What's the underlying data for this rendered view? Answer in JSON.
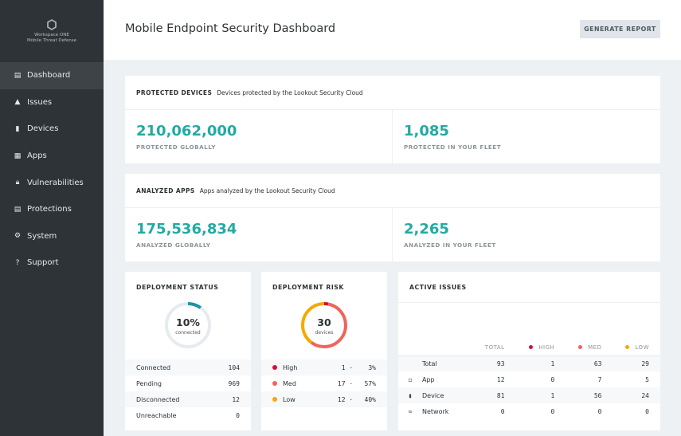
{
  "sidebar": {
    "logo_line1": "Workspace ONE",
    "logo_line2": "Mobile Threat Defense",
    "items": [
      {
        "label": "Dashboard",
        "icon": "dashboard-icon"
      },
      {
        "label": "Issues",
        "icon": "warning-icon"
      },
      {
        "label": "Devices",
        "icon": "device-icon"
      },
      {
        "label": "Apps",
        "icon": "apps-icon"
      },
      {
        "label": "Vulnerabilities",
        "icon": "lock-icon"
      },
      {
        "label": "Protections",
        "icon": "protections-icon"
      },
      {
        "label": "System",
        "icon": "gear-icon"
      },
      {
        "label": "Support",
        "icon": "help-icon"
      }
    ]
  },
  "header": {
    "title": "Mobile Endpoint Security Dashboard",
    "generate_report": "GENERATE REPORT"
  },
  "protected": {
    "title": "PROTECTED DEVICES",
    "desc": "Devices protected by the Lookout Security Cloud",
    "global_value": "210,062,000",
    "global_label": "PROTECTED GLOBALLY",
    "fleet_value": "1,085",
    "fleet_label": "PROTECTED IN YOUR FLEET"
  },
  "analyzed": {
    "title": "ANALYZED APPS",
    "desc": "Apps analyzed by the Lookout Security Cloud",
    "global_value": "175,536,834",
    "global_label": "ANALYZED GLOBALLY",
    "fleet_value": "2,265",
    "fleet_label": "ANALYZED IN YOUR FLEET"
  },
  "deployment_status": {
    "title": "DEPLOYMENT STATUS",
    "percent": "10%",
    "percent_value": 10,
    "center_label": "connected",
    "rows": [
      {
        "label": "Connected",
        "value": "104"
      },
      {
        "label": "Pending",
        "value": "969"
      },
      {
        "label": "Disconnected",
        "value": "12"
      },
      {
        "label": "Unreachable",
        "value": "0"
      }
    ]
  },
  "deployment_risk": {
    "title": "DEPLOYMENT RISK",
    "total": "30",
    "center_label": "devices",
    "rows": [
      {
        "label": "High",
        "count": "1",
        "percent": "3%",
        "value": 3,
        "color": "#d0103a"
      },
      {
        "label": "Med",
        "count": "17",
        "percent": "57%",
        "value": 57,
        "color": "#f0645a"
      },
      {
        "label": "Low",
        "count": "12",
        "percent": "40%",
        "value": 40,
        "color": "#f7a800"
      }
    ]
  },
  "active_issues": {
    "title": "ACTIVE ISSUES",
    "columns": [
      "TOTAL",
      "HIGH",
      "MED",
      "LOW"
    ],
    "rows": [
      {
        "label": "Total",
        "values": [
          "93",
          "1",
          "63",
          "29"
        ]
      },
      {
        "label": "App",
        "values": [
          "12",
          "0",
          "7",
          "5"
        ]
      },
      {
        "label": "Device",
        "values": [
          "81",
          "1",
          "56",
          "24"
        ]
      },
      {
        "label": "Network",
        "values": [
          "0",
          "0",
          "0",
          "0"
        ]
      }
    ]
  },
  "colors": {
    "accent": "#23aaa3",
    "status_ring": "#1e93a8",
    "high": "#d0103a",
    "med": "#f0645a",
    "low": "#f7a800"
  }
}
